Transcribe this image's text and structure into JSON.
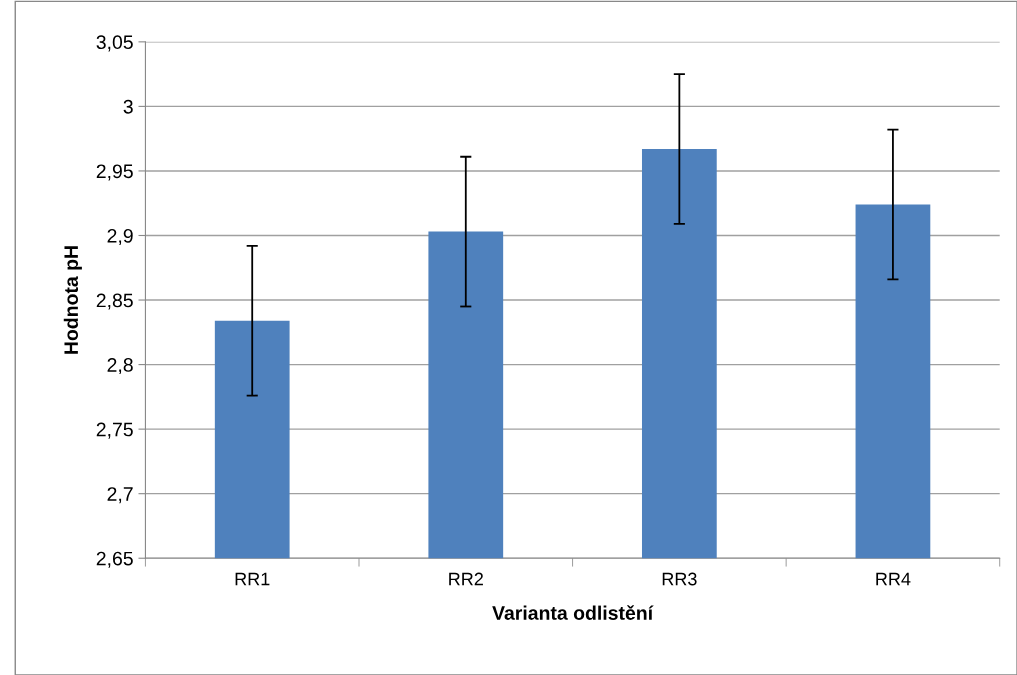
{
  "chart_data": {
    "type": "bar",
    "xlabel": "Varianta odlistění",
    "ylabel": "Hodnota pH",
    "categories": [
      "RR1",
      "RR2",
      "RR3",
      "RR4"
    ],
    "values": [
      2.834,
      2.903,
      2.967,
      2.924
    ],
    "errors": [
      0.058,
      0.058,
      0.058,
      0.058
    ],
    "color": "#4f81bd",
    "ylim": [
      2.65,
      3.05
    ],
    "yticks": [
      {
        "value": 2.65,
        "label": "2,65"
      },
      {
        "value": 2.7,
        "label": "2,7"
      },
      {
        "value": 2.75,
        "label": "2,75"
      },
      {
        "value": 2.8,
        "label": "2,8"
      },
      {
        "value": 2.85,
        "label": "2,85"
      },
      {
        "value": 2.9,
        "label": "2,9"
      },
      {
        "value": 2.95,
        "label": "2,95"
      },
      {
        "value": 3,
        "label": "3"
      },
      {
        "value": 3.05,
        "label": "3,05"
      }
    ],
    "grid": "y",
    "legend": false
  }
}
